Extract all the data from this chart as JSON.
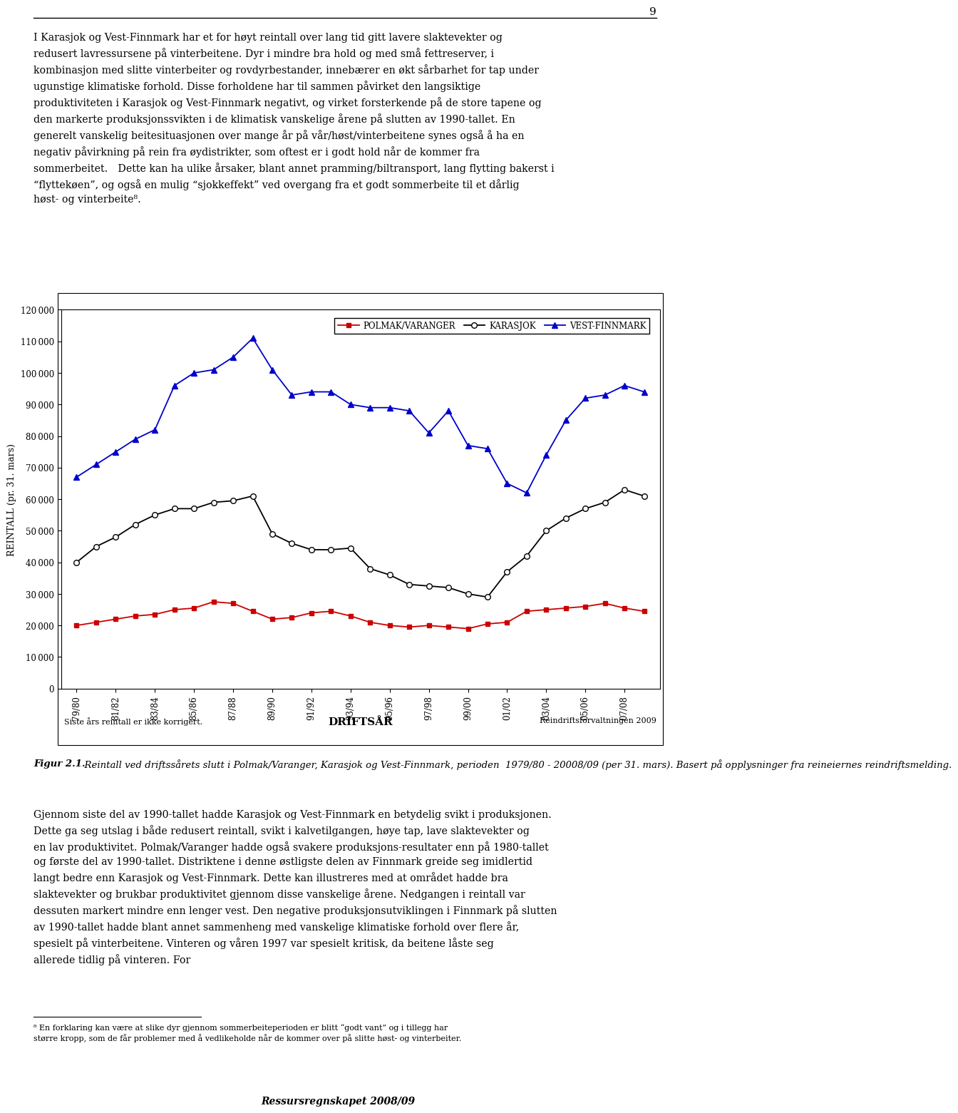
{
  "x_labels": [
    "79/80",
    "81/82",
    "83/84",
    "85/86",
    "87/88",
    "89/90",
    "91/92",
    "93/94",
    "95/96",
    "97/98",
    "99/00",
    "01/02",
    "03/04",
    "05/06",
    "07/08"
  ],
  "polmak_x": [
    0,
    1,
    2,
    3,
    4,
    5,
    6,
    7,
    8,
    9,
    10,
    11,
    12,
    13,
    14,
    15,
    16,
    17,
    18,
    19,
    20,
    21,
    22,
    23,
    24,
    25,
    26,
    27,
    28,
    29
  ],
  "polmak_y": [
    20000,
    21000,
    22000,
    23000,
    23500,
    25000,
    25500,
    27500,
    27000,
    24500,
    22000,
    22500,
    24000,
    24500,
    23000,
    21000,
    20000,
    19500,
    20000,
    19500,
    19000,
    20500,
    21000,
    24500,
    25000,
    25500,
    26000,
    27000,
    25500,
    24500
  ],
  "karasjok_x": [
    0,
    1,
    2,
    3,
    4,
    5,
    6,
    7,
    8,
    9,
    10,
    11,
    12,
    13,
    14,
    15,
    16,
    17,
    18,
    19,
    20,
    21,
    22,
    23,
    24,
    25,
    26,
    27,
    28,
    29
  ],
  "karasjok_y": [
    40000,
    45000,
    48000,
    52000,
    55000,
    57000,
    57000,
    59000,
    59500,
    61000,
    49000,
    46000,
    44000,
    44000,
    44500,
    38000,
    36000,
    33000,
    32500,
    32000,
    30000,
    29000,
    37000,
    42000,
    50000,
    54000,
    57000,
    59000,
    63000,
    61000
  ],
  "vest_x": [
    0,
    1,
    2,
    3,
    4,
    5,
    6,
    7,
    8,
    9,
    10,
    11,
    12,
    13,
    14,
    15,
    16,
    17,
    18,
    19,
    20,
    21,
    22,
    23,
    24,
    25,
    26,
    27,
    28,
    29
  ],
  "vest_y": [
    67000,
    71000,
    75000,
    79000,
    82000,
    96000,
    100000,
    101000,
    105000,
    111000,
    101000,
    93000,
    94000,
    94000,
    90000,
    89000,
    89000,
    88000,
    81000,
    88000,
    77000,
    76000,
    65000,
    62000,
    74000,
    85000,
    92000,
    93000,
    96000,
    94000
  ],
  "ylim": [
    0,
    120000
  ],
  "ytick_vals": [
    0,
    10000,
    20000,
    30000,
    40000,
    50000,
    60000,
    70000,
    80000,
    90000,
    100000,
    110000,
    120000
  ],
  "page_number": "9",
  "top_text_para1": "I Karasjok og Vest-Finnmark har et for høyt reintall over lang tid gitt lavere slaktevekter og redusert lavressursene på vinterbeitene. Dyr i mindre bra hold og med små fettreserver, i kombinasjon med slitte vinterbeiter og rovdyrbestander, innebærer en økt sårbarhet for tap under ugunstige klimatiske forhold. Disse forholdene har til sammen påvirket den langsiktige produktiviteten i Karasjok og Vest-Finnmark negativt, og virket forsterkende på de store tapene og den markerte produksjonssvikten i de klimatisk vanskelige årene på slutten av 1990-tallet. En generelt vanskelig beitesituasjonen over mange år på vår/høst/vinterbeitene synes også å ha en negativ påvirkning på rein fra øydistrikter, som oftest er i godt hold når de kommer fra sommerbeitet. Dette kan ha ulike årsaker, blant annet pramming/biltransport, lang flytting bakerst i “flyttekøen”, og også en mulig “sjokkeffekt” ved overgang fra et godt sommerbeite til et dårlig høst- og vinterbeite⁸.",
  "note_left": "Siste års reintall er ikke korrigert.",
  "note_center": "DRIFTSÅR",
  "note_right": "Reindriftsforvaltningen 2009",
  "ylabel": "REINTALL (pr. 31. mars)",
  "fig_caption_bold": "Figur 2.1.",
  "fig_caption_italic": "  Reintall ved driftssårets slutt i Polmak/Varanger, Karasjok og Vest-Finnmark, perioden  1979/80 - 20008/09 (per 31. mars). Basert på opplysninger fra reineiernes reindriftsmelding.",
  "bottom_text": "Gjennom siste del av 1990-tallet hadde Karasjok og Vest-Finnmark en betydelig svikt i produksjonen. Dette ga seg utslag i både redusert reintall, svikt i kalvetilgangen, høye tap, lave slaktevekter og en lav produktivitet. Polmak/Varanger hadde også svakere produksjons­resultater enn på 1980-tallet og første del av 1990-tallet. Distriktene i denne østligste delen av Finnmark greide seg imidlertid langt bedre enn Karasjok og Vest-Finnmark. Dette kan illustreres med at området hadde bra slaktevekter og brukbar produktivitet gjennom disse vanskelige årene. Nedgangen i reintall var dessuten markert mindre enn lenger vest. Den negative produksjonsutviklingen i Finnmark på slutten av 1990-tallet hadde blant annet sammenheng med vanskelige klimatiske forhold over flere år, spesielt på vinterbeitene. Vinteren og våren 1997 var spesielt kritisk, da beitene låste seg allerede tidlig på vinteren. For",
  "footnote": "⁸ En forklaring kan være at slike dyr gjennom sommerbeiteperioden er blitt “godt vant” og i tillegg har større kropp, som de får problemer med å vedlikeholde når de kommer over på slitte høst- og vinterbeiter.",
  "footer": "Ressursregnskapet 2008/09"
}
